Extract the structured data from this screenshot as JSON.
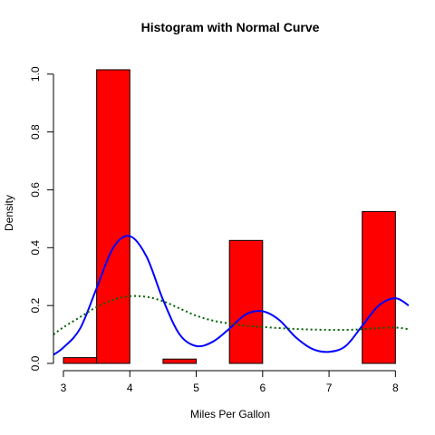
{
  "chart_data": {
    "type": "bar",
    "title": "Histogram with Normal Curve",
    "xlabel": "Miles Per Gallon",
    "ylabel": "Density",
    "xlim": [
      2.85,
      8.2
    ],
    "ylim": [
      0,
      1.04
    ],
    "x_ticks": [
      3,
      4,
      5,
      6,
      7,
      8
    ],
    "y_ticks": [
      0.0,
      0.2,
      0.4,
      0.6,
      0.8,
      1.0
    ],
    "x_tick_labels": [
      "3",
      "4",
      "5",
      "6",
      "7",
      "8"
    ],
    "y_tick_labels": [
      "0.0",
      "0.2",
      "0.4",
      "0.6",
      "0.8",
      "1.0"
    ],
    "bins": [
      {
        "x0": 3.0,
        "x1": 3.5,
        "density": 0.02
      },
      {
        "x0": 3.5,
        "x1": 4.0,
        "density": 1.015
      },
      {
        "x0": 4.0,
        "x1": 4.5,
        "density": 0.0
      },
      {
        "x0": 4.5,
        "x1": 5.0,
        "density": 0.015
      },
      {
        "x0": 5.0,
        "x1": 5.5,
        "density": 0.0
      },
      {
        "x0": 5.5,
        "x1": 6.0,
        "density": 0.425
      },
      {
        "x0": 6.0,
        "x1": 6.5,
        "density": 0.0
      },
      {
        "x0": 6.5,
        "x1": 7.0,
        "density": 0.0
      },
      {
        "x0": 7.0,
        "x1": 7.5,
        "density": 0.0
      },
      {
        "x0": 7.5,
        "x1": 8.0,
        "density": 0.525
      }
    ],
    "bar_color": "#ff0000",
    "bar_border": "#000000",
    "series": [
      {
        "style": "solid",
        "color": "#0000ff",
        "x": [
          2.85,
          3.0,
          3.25,
          3.5,
          3.75,
          4.0,
          4.25,
          4.5,
          4.75,
          5.0,
          5.25,
          5.5,
          5.75,
          6.0,
          6.25,
          6.5,
          6.75,
          7.0,
          7.25,
          7.5,
          7.75,
          8.0,
          8.2
        ],
        "y": [
          0.03,
          0.055,
          0.12,
          0.26,
          0.4,
          0.44,
          0.37,
          0.22,
          0.1,
          0.06,
          0.075,
          0.12,
          0.17,
          0.18,
          0.15,
          0.09,
          0.05,
          0.04,
          0.06,
          0.13,
          0.2,
          0.225,
          0.2
        ]
      },
      {
        "style": "dotted",
        "color": "#006400",
        "x": [
          2.85,
          3.0,
          3.25,
          3.5,
          3.75,
          4.0,
          4.25,
          4.5,
          4.75,
          5.0,
          5.25,
          5.5,
          5.75,
          6.0,
          6.25,
          6.5,
          6.75,
          7.0,
          7.25,
          7.5,
          7.75,
          8.0,
          8.2
        ],
        "y": [
          0.1,
          0.125,
          0.16,
          0.195,
          0.22,
          0.232,
          0.23,
          0.215,
          0.19,
          0.165,
          0.148,
          0.138,
          0.13,
          0.126,
          0.122,
          0.119,
          0.117,
          0.116,
          0.116,
          0.118,
          0.122,
          0.124,
          0.118
        ]
      }
    ]
  }
}
